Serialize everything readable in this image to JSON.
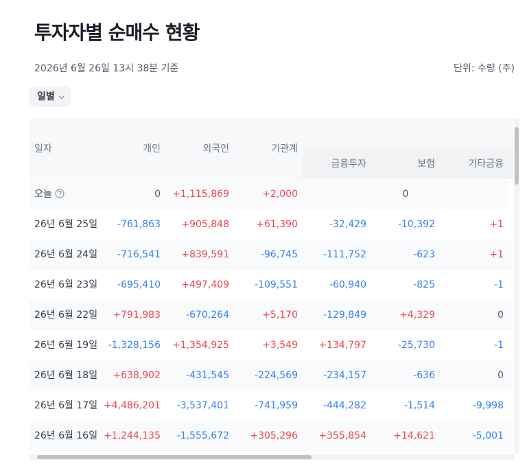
{
  "header": {
    "title": "투자자별 순매수 현황",
    "subtitle": "2026년 6월 26일 13시 38분 기준",
    "unit": "단위: 수량 (주)"
  },
  "filter": "일별",
  "table": {
    "columns": [
      "일자",
      "개인",
      "외국인",
      "기관계"
    ],
    "group_columns": [
      "금융투자",
      "보험",
      "기타금융"
    ],
    "rows": [
      [
        "오늘",
        "0",
        "+1,115,869",
        "+2,000",
        "0"
      ],
      [
        "26년 6월 25일",
        "-761,863",
        "+905,848",
        "+61,390",
        "-32,429",
        "-10,392",
        "+1"
      ],
      [
        "26년 6월 24일",
        "-716,541",
        "+839,591",
        "-96,745",
        "-111,752",
        "-623",
        "+1"
      ],
      [
        "26년 6월 23일",
        "-695,410",
        "+497,409",
        "-109,551",
        "-60,940",
        "-825",
        "-1"
      ],
      [
        "26년 6월 22일",
        "+791,983",
        "-670,264",
        "+5,170",
        "-129,849",
        "+4,329",
        "0"
      ],
      [
        "26년 6월 19일",
        "-1,328,156",
        "+1,354,925",
        "+3,549",
        "+134,797",
        "-25,730",
        "-1"
      ],
      [
        "26년 6월 18일",
        "+638,902",
        "-431,545",
        "-224,569",
        "-234,157",
        "-636",
        "0"
      ],
      [
        "26년 6월 17일",
        "+4,486,201",
        "-3,537,401",
        "-741,959",
        "-444,282",
        "-1,514",
        "-9,998"
      ],
      [
        "26년 6월 16일",
        "+1,244,135",
        "-1,555,672",
        "+305,296",
        "+355,854",
        "+14,621",
        "-5,001"
      ]
    ]
  }
}
